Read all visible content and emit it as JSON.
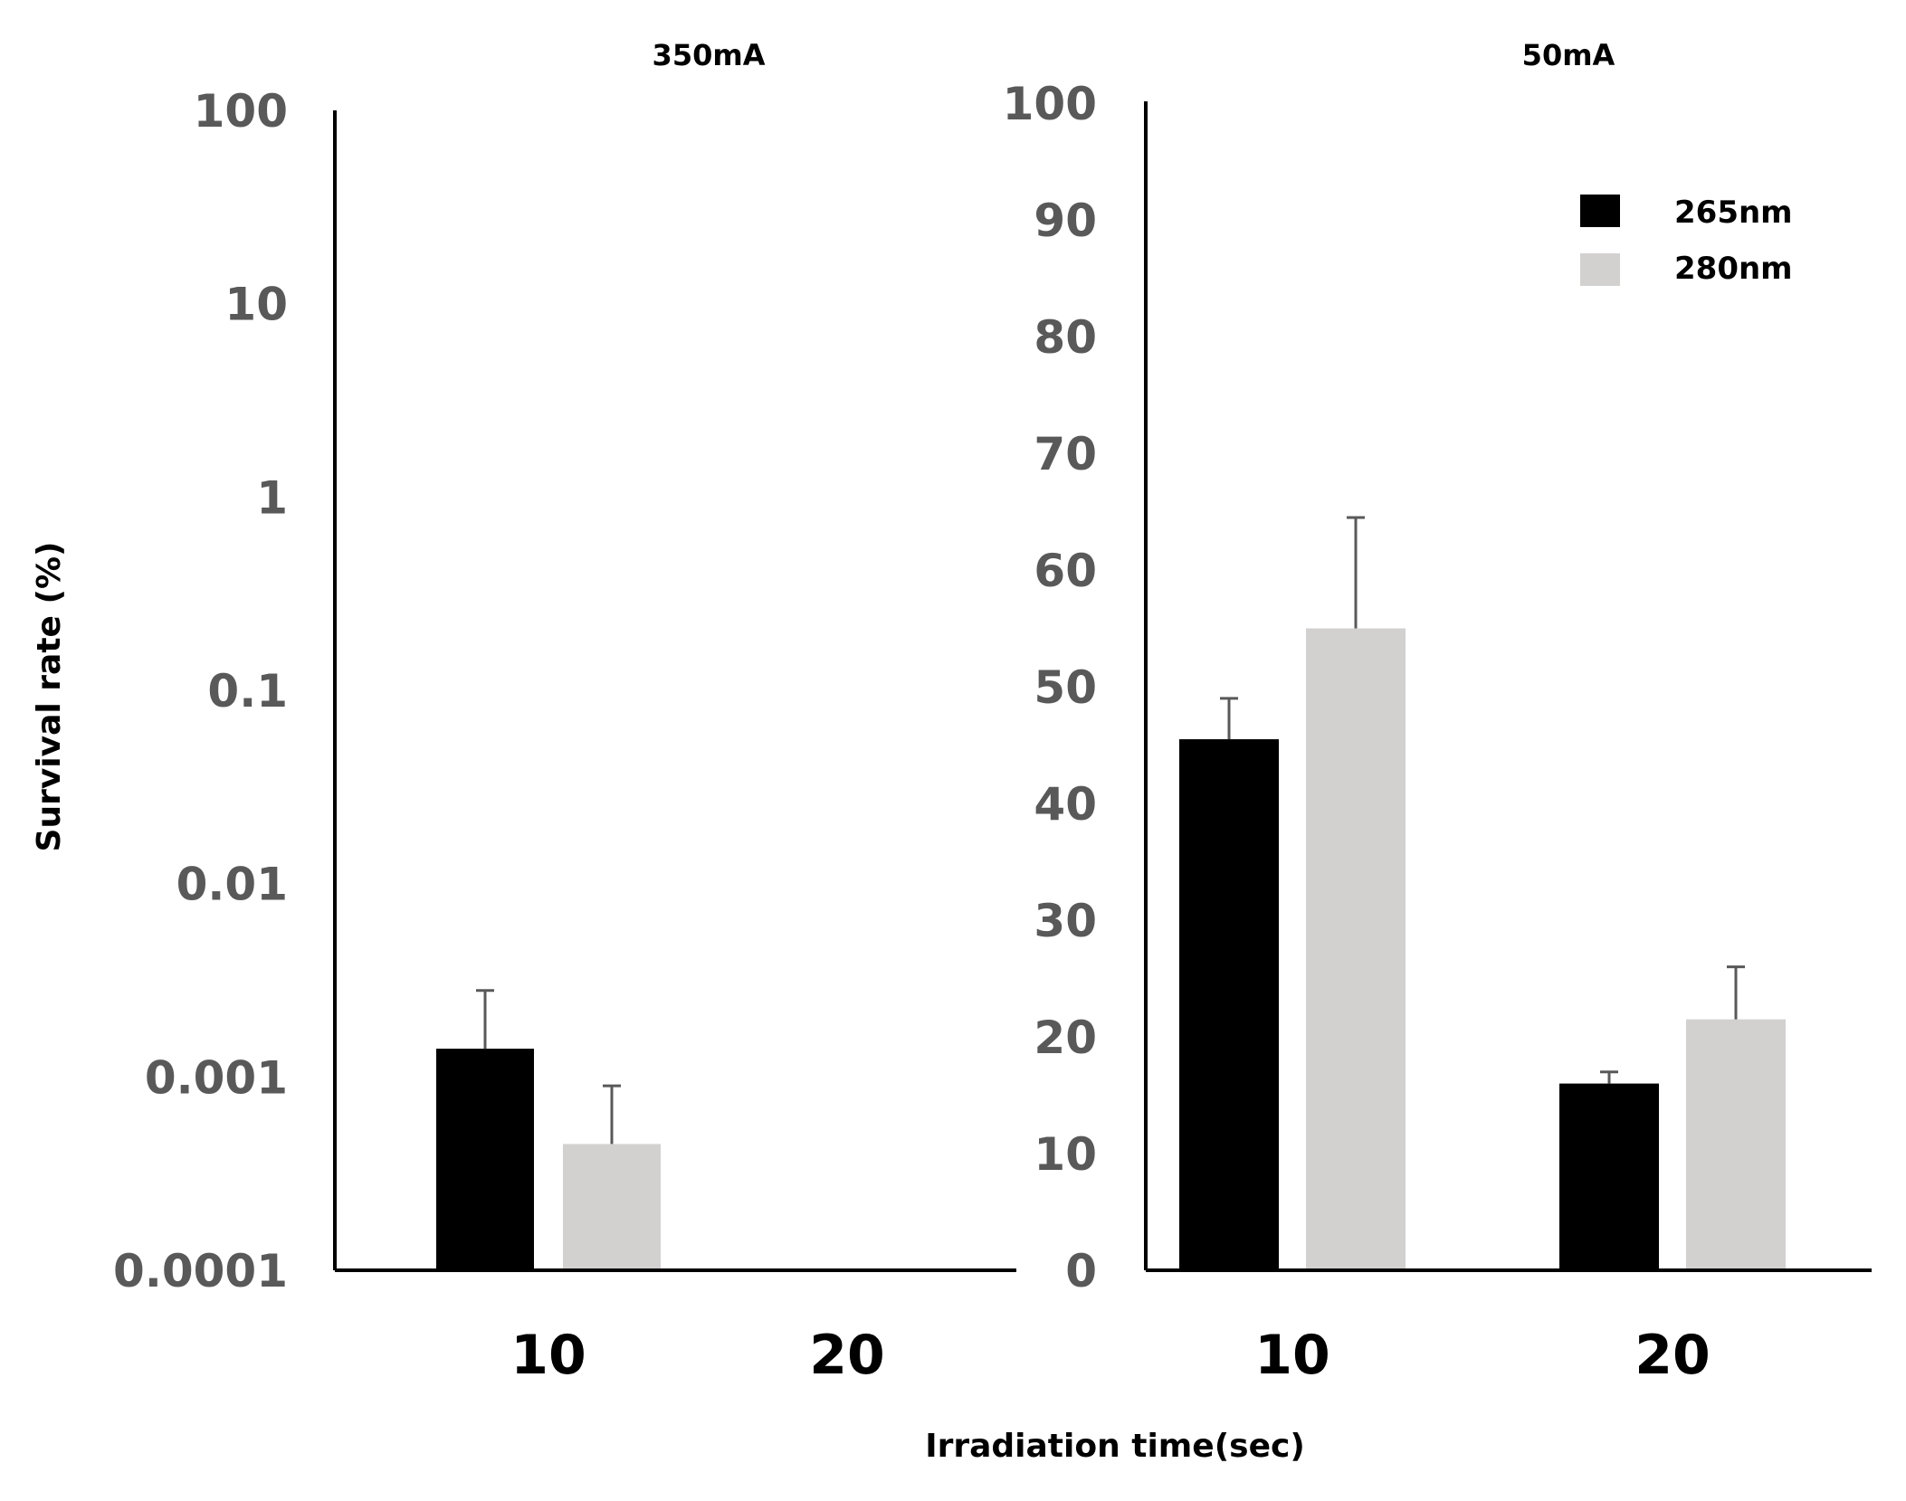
{
  "xlabel": "Irradiation time(sec)",
  "ylabel": "Survival rate (%)",
  "colors": {
    "nm265": "#000000",
    "nm280": "#d3d0d0",
    "axis": "#000000",
    "tick": "#595959",
    "error": "#595959"
  },
  "legend": [
    {
      "label": "265nm",
      "color": "#000000"
    },
    {
      "label": "280nm",
      "color": "#d3d0d0"
    }
  ],
  "chart_data": [
    {
      "type": "bar",
      "title": "350mA",
      "yscale": "log",
      "ylim": [
        0.0001,
        100
      ],
      "yticks": [
        "100",
        "10",
        "1",
        "0.1",
        "0.01",
        "0.001",
        "0.0001"
      ],
      "categories": [
        "10",
        "20"
      ],
      "series": [
        {
          "name": "265nm",
          "values": [
            0.0014,
            null
          ],
          "errors": [
            0.0014,
            null
          ]
        },
        {
          "name": "280nm",
          "values": [
            0.00045,
            null
          ],
          "errors": [
            0.00045,
            null
          ]
        }
      ],
      "xlabel": "Irradiation time(sec)",
      "ylabel": "Survival rate (%)"
    },
    {
      "type": "bar",
      "title": "50mA",
      "yscale": "linear",
      "ylim": [
        0,
        100
      ],
      "yticks": [
        "100",
        "90",
        "80",
        "70",
        "60",
        "50",
        "40",
        "30",
        "20",
        "10",
        "0"
      ],
      "categories": [
        "10",
        "20"
      ],
      "series": [
        {
          "name": "265nm",
          "values": [
            45.5,
            16
          ],
          "errors": [
            3.5,
            1
          ]
        },
        {
          "name": "280nm",
          "values": [
            55,
            21.5
          ],
          "errors": [
            9.5,
            4.5
          ]
        }
      ],
      "legend_position": "top-right",
      "xlabel": "Irradiation time(sec)",
      "ylabel": "Survival rate (%)"
    }
  ]
}
